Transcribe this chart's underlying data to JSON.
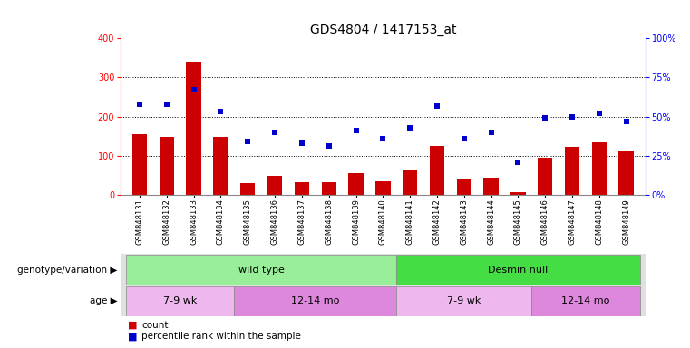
{
  "title": "GDS4804 / 1417153_at",
  "samples": [
    "GSM848131",
    "GSM848132",
    "GSM848133",
    "GSM848134",
    "GSM848135",
    "GSM848136",
    "GSM848137",
    "GSM848138",
    "GSM848139",
    "GSM848140",
    "GSM848141",
    "GSM848142",
    "GSM848143",
    "GSM848144",
    "GSM848145",
    "GSM848146",
    "GSM848147",
    "GSM848148",
    "GSM848149"
  ],
  "counts": [
    155,
    148,
    340,
    148,
    30,
    48,
    33,
    33,
    55,
    35,
    62,
    125,
    40,
    43,
    8,
    95,
    122,
    135,
    112
  ],
  "percentiles": [
    58,
    58,
    67,
    53,
    34,
    40,
    33,
    31,
    41,
    36,
    43,
    57,
    36,
    40,
    21,
    49,
    50,
    52,
    47
  ],
  "genotype_groups": [
    {
      "label": "wild type",
      "start": 0,
      "end": 10,
      "color": "#99EE99"
    },
    {
      "label": "Desmin null",
      "start": 10,
      "end": 19,
      "color": "#44DD44"
    }
  ],
  "age_groups": [
    {
      "label": "7-9 wk",
      "start": 0,
      "end": 4,
      "color": "#EEB8EE"
    },
    {
      "label": "12-14 mo",
      "start": 4,
      "end": 10,
      "color": "#DD88DD"
    },
    {
      "label": "7-9 wk",
      "start": 10,
      "end": 15,
      "color": "#EEB8EE"
    },
    {
      "label": "12-14 mo",
      "start": 15,
      "end": 19,
      "color": "#DD88DD"
    }
  ],
  "bar_color": "#CC0000",
  "scatter_color": "#0000CC",
  "ylim_left": [
    0,
    400
  ],
  "ylim_right": [
    0,
    100
  ],
  "yticks_left": [
    0,
    100,
    200,
    300,
    400
  ],
  "yticks_right": [
    0,
    25,
    50,
    75,
    100
  ],
  "ytick_labels_right": [
    "0%",
    "25%",
    "50%",
    "75%",
    "100%"
  ],
  "hgrid_vals": [
    100,
    200,
    300
  ],
  "background_color": "#FFFFFF",
  "title_fontsize": 10,
  "tick_fontsize": 7,
  "xtick_fontsize": 6,
  "legend_items": [
    "count",
    "percentile rank within the sample"
  ],
  "legend_colors": [
    "#CC0000",
    "#0000CC"
  ],
  "geno_label": "genotype/variation",
  "age_label": "age",
  "bar_width": 0.55
}
